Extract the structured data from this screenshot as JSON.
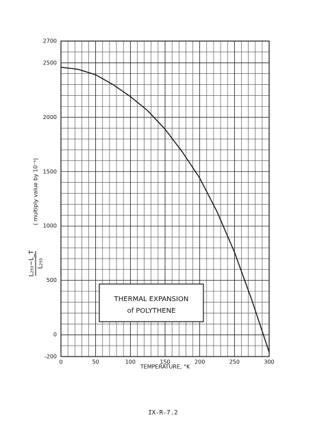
{
  "chart_data": {
    "type": "line",
    "title": [
      "THERMAL EXPANSION",
      "of POLYTHENE"
    ],
    "x_label": "TEMPERATURE, °K",
    "y_label": [
      "L₂₉₃−L_T",
      "L₂₉₃",
      "( multiply value by 10⁻⁵)"
    ],
    "x": [
      0,
      25,
      50,
      75,
      100,
      125,
      150,
      175,
      200,
      225,
      250,
      275,
      300
    ],
    "values": [
      2460,
      2440,
      2390,
      2300,
      2190,
      2060,
      1890,
      1680,
      1440,
      1130,
      760,
      320,
      -160
    ],
    "color": "#111111",
    "xlim": [
      0,
      300
    ],
    "xticks": [
      0,
      50,
      100,
      150,
      200,
      250,
      300
    ],
    "ylim": [
      -200,
      2700
    ],
    "yticks": [
      -200,
      0,
      500,
      1000,
      1500,
      2000,
      2500,
      2700
    ],
    "grid": true
  },
  "page_label": "IX-R-7.2"
}
